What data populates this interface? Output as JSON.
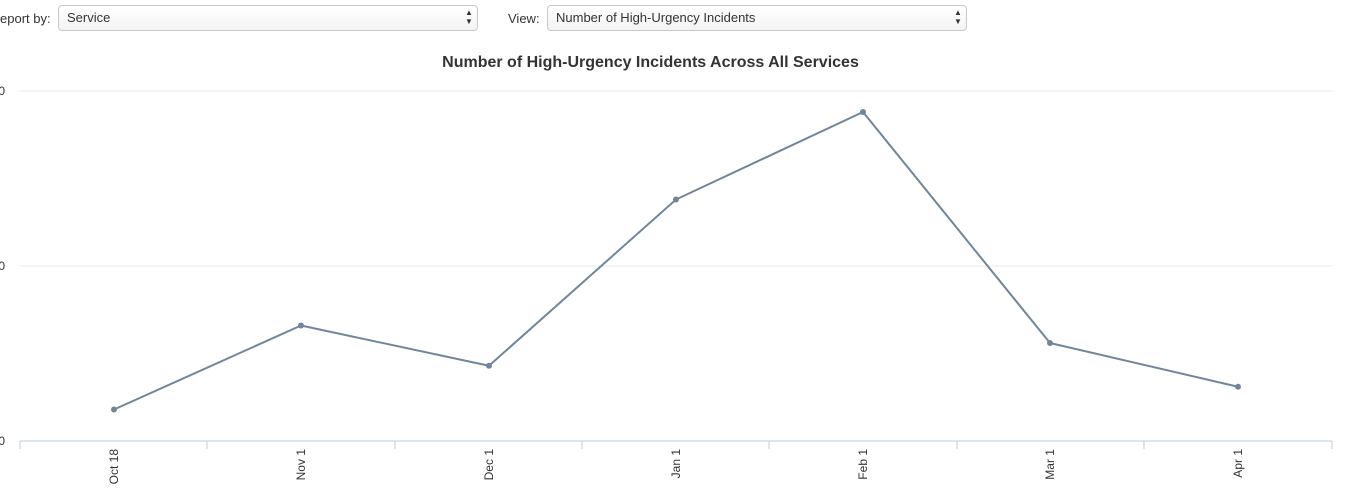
{
  "controls": {
    "report_label": "eport by:",
    "report_value": "Service",
    "view_label": "View:",
    "view_value": "Number of High-Urgency Incidents"
  },
  "icons": {
    "select_arrows": "up-down-chevron-icon"
  },
  "colors": {
    "line": "#73859a",
    "axis": "#b8ccd9",
    "grid": "#ebebeb"
  },
  "chart_data": {
    "type": "line",
    "title": "Number of High-Urgency Incidents Across All Services",
    "xlabel": "",
    "ylabel": "",
    "categories": [
      "Oct 18",
      "Nov 1",
      "Dec 1",
      "Jan 1",
      "Feb 1",
      "Mar 1",
      "Apr 1"
    ],
    "y_tick_labels": [
      "0",
      "0",
      "0"
    ],
    "ylim": [
      0,
      2
    ],
    "grid": true,
    "legend": "none",
    "series": [
      {
        "values": [
          0.18,
          0.66,
          0.43,
          1.38,
          1.88,
          0.56,
          0.31
        ]
      }
    ]
  }
}
